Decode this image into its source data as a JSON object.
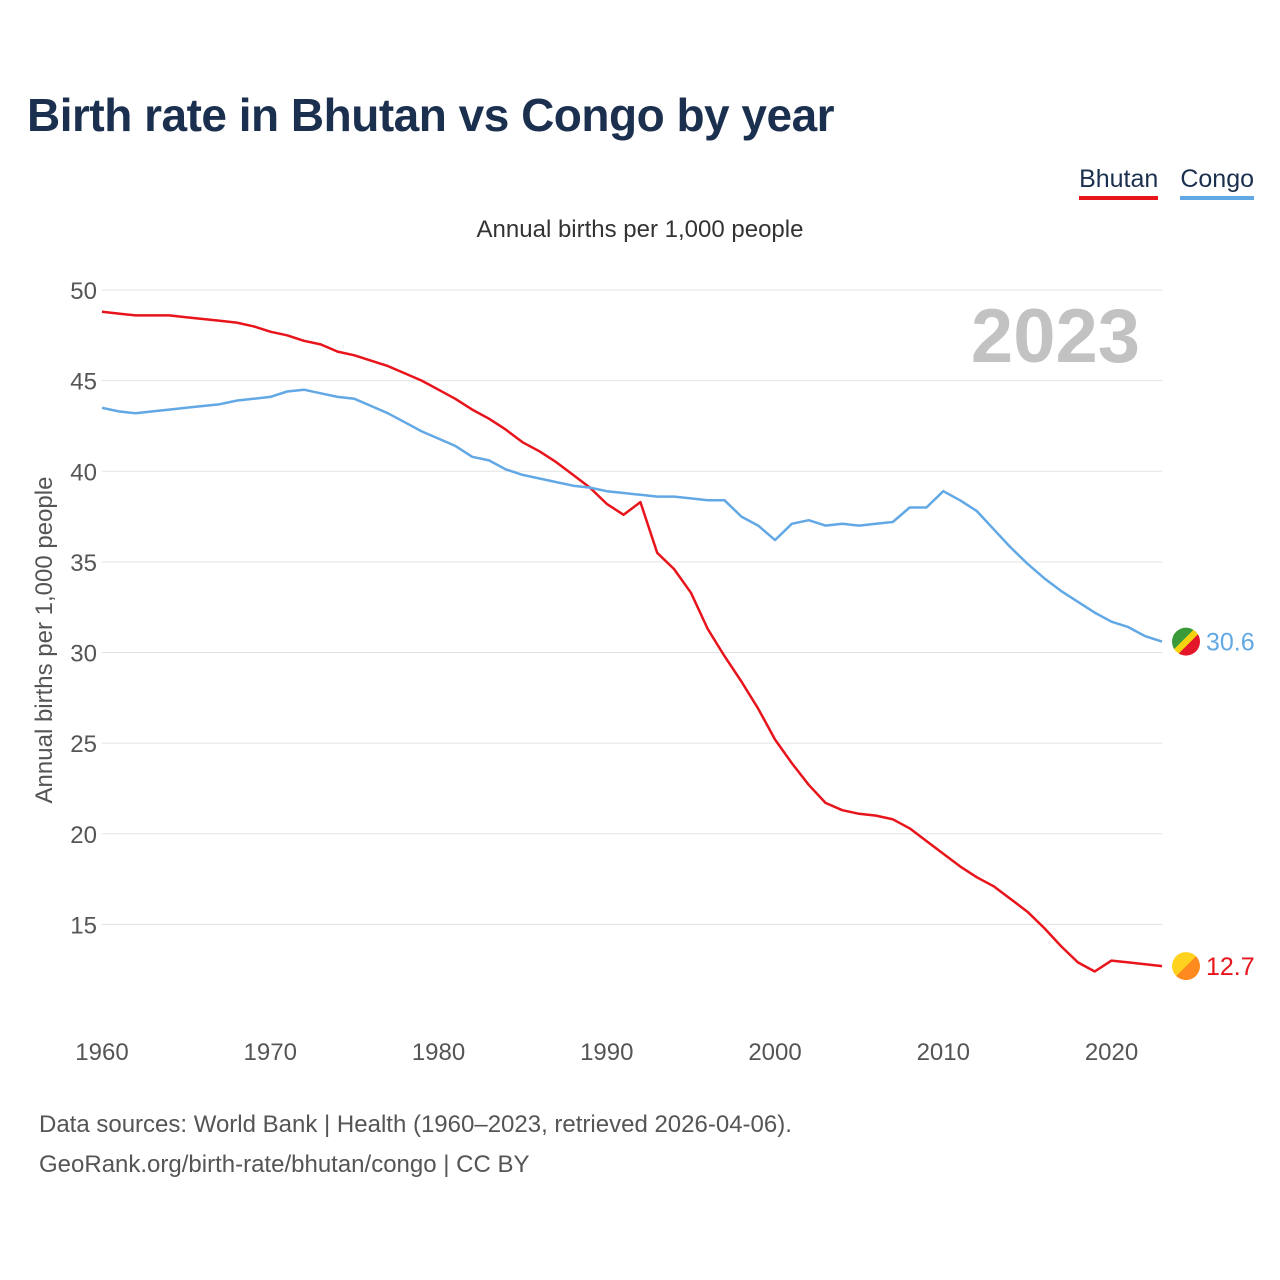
{
  "title": "Birth rate in Bhutan vs Congo by year",
  "legend": [
    {
      "name": "Bhutan",
      "color": "#e8141b"
    },
    {
      "name": "Congo",
      "color": "#62a8e5"
    }
  ],
  "footer": {
    "source": "Data sources: World Bank | Health (1960–2023, retrieved 2026-04-06).",
    "link": "GeoRank.org/birth-rate/bhutan/congo | CC BY"
  },
  "chart_data": {
    "type": "line",
    "title": "Annual births per 1,000 people",
    "ylabel": "Annual births per 1,000 people",
    "xlabel": "",
    "year_label": "2023",
    "xlim": [
      1960,
      2023
    ],
    "ylim": [
      10,
      50
    ],
    "x_ticks": [
      1960,
      1970,
      1980,
      1990,
      2000,
      2010,
      2020
    ],
    "y_ticks": [
      15,
      20,
      25,
      30,
      35,
      40,
      45,
      50
    ],
    "grid": true,
    "legend_position": "top-right",
    "x": [
      1960,
      1961,
      1962,
      1963,
      1964,
      1965,
      1966,
      1967,
      1968,
      1969,
      1970,
      1971,
      1972,
      1973,
      1974,
      1975,
      1976,
      1977,
      1978,
      1979,
      1980,
      1981,
      1982,
      1983,
      1984,
      1985,
      1986,
      1987,
      1988,
      1989,
      1990,
      1991,
      1992,
      1993,
      1994,
      1995,
      1996,
      1997,
      1998,
      1999,
      2000,
      2001,
      2002,
      2003,
      2004,
      2005,
      2006,
      2007,
      2008,
      2009,
      2010,
      2011,
      2012,
      2013,
      2014,
      2015,
      2016,
      2017,
      2018,
      2019,
      2020,
      2021,
      2022,
      2023
    ],
    "series": [
      {
        "name": "Bhutan",
        "color": "#e8141b",
        "end_label": "12.7",
        "values": [
          48.8,
          48.7,
          48.6,
          48.6,
          48.6,
          48.5,
          48.4,
          48.3,
          48.2,
          48.0,
          47.7,
          47.5,
          47.2,
          47.0,
          46.6,
          46.4,
          46.1,
          45.8,
          45.4,
          45.0,
          44.5,
          44.0,
          43.4,
          42.9,
          42.3,
          41.6,
          41.1,
          40.5,
          39.8,
          39.1,
          38.2,
          37.6,
          38.3,
          35.5,
          34.6,
          33.3,
          31.3,
          29.8,
          28.4,
          26.9,
          25.2,
          23.9,
          22.7,
          21.7,
          21.3,
          21.1,
          21.0,
          20.8,
          20.3,
          19.6,
          18.9,
          18.2,
          17.6,
          17.1,
          16.4,
          15.7,
          14.8,
          13.8,
          12.9,
          12.4,
          13.0,
          12.9,
          12.8,
          12.7
        ]
      },
      {
        "name": "Congo",
        "color": "#62a8e5",
        "end_label": "30.6",
        "values": [
          43.5,
          43.3,
          43.2,
          43.3,
          43.4,
          43.5,
          43.6,
          43.7,
          43.9,
          44.0,
          44.1,
          44.4,
          44.5,
          44.3,
          44.1,
          44.0,
          43.6,
          43.2,
          42.7,
          42.2,
          41.8,
          41.4,
          40.8,
          40.6,
          40.1,
          39.8,
          39.6,
          39.4,
          39.2,
          39.1,
          38.9,
          38.8,
          38.7,
          38.6,
          38.6,
          38.5,
          38.4,
          38.4,
          37.5,
          37.0,
          36.2,
          37.1,
          37.3,
          37.0,
          37.1,
          37.0,
          37.1,
          37.2,
          38.0,
          38.0,
          38.9,
          38.4,
          37.8,
          36.8,
          35.8,
          34.9,
          34.1,
          33.4,
          32.8,
          32.2,
          31.7,
          31.4,
          30.9,
          30.6
        ]
      }
    ]
  }
}
